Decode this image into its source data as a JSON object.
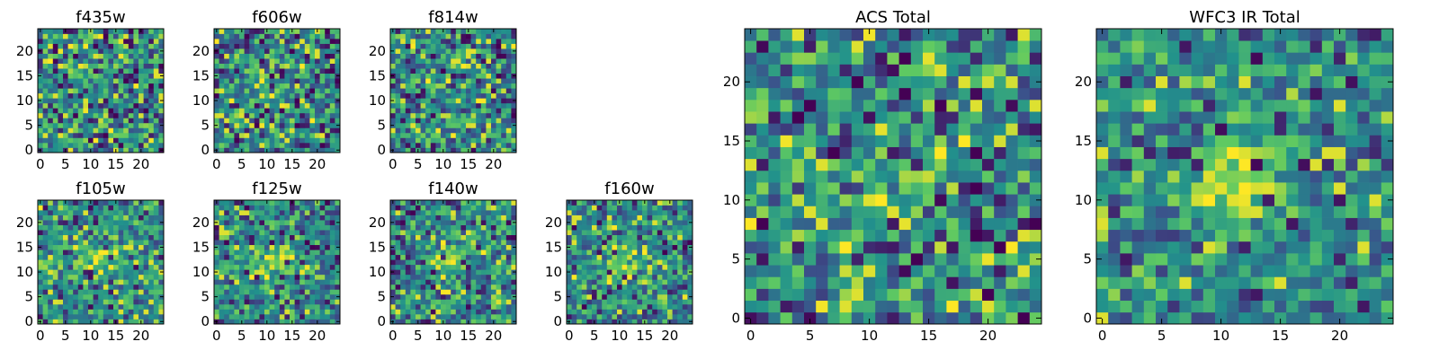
{
  "figure": {
    "colormap": "viridis",
    "colormap_stops": [
      "#440154",
      "#3b528b",
      "#21918c",
      "#5ec962",
      "#fde725"
    ],
    "background": "#ffffff"
  },
  "chart_data": [
    {
      "type": "heatmap",
      "title": "f435w",
      "grid": false,
      "xlim": [
        0,
        25
      ],
      "ylim": [
        0,
        25
      ],
      "xticks": [
        0,
        5,
        10,
        15,
        20
      ],
      "yticks": [
        0,
        5,
        10,
        15,
        20
      ],
      "noise": 0.2,
      "blob": 0.0,
      "blob_center": [
        12,
        11
      ],
      "blob_sigma": 4,
      "seed": 11
    },
    {
      "type": "heatmap",
      "title": "f606w",
      "grid": false,
      "xlim": [
        0,
        25
      ],
      "ylim": [
        0,
        25
      ],
      "xticks": [
        0,
        5,
        10,
        15,
        20
      ],
      "yticks": [
        0,
        5,
        10,
        15,
        20
      ],
      "noise": 0.2,
      "blob": 0.0,
      "blob_center": [
        12,
        11
      ],
      "blob_sigma": 4,
      "seed": 23
    },
    {
      "type": "heatmap",
      "title": "f814w",
      "grid": false,
      "xlim": [
        0,
        25
      ],
      "ylim": [
        0,
        25
      ],
      "xticks": [
        0,
        5,
        10,
        15,
        20
      ],
      "yticks": [
        0,
        5,
        10,
        15,
        20
      ],
      "noise": 0.2,
      "blob": 0.05,
      "blob_center": [
        12,
        11
      ],
      "blob_sigma": 4,
      "seed": 37
    },
    {
      "type": "heatmap",
      "title": "f105w",
      "grid": false,
      "xlim": [
        0,
        25
      ],
      "ylim": [
        0,
        25
      ],
      "xticks": [
        0,
        5,
        10,
        15,
        20
      ],
      "yticks": [
        0,
        5,
        10,
        15,
        20
      ],
      "noise": 0.16,
      "blob": 0.35,
      "blob_center": [
        11,
        12
      ],
      "blob_sigma": 3,
      "seed": 41
    },
    {
      "type": "heatmap",
      "title": "f125w",
      "grid": false,
      "xlim": [
        0,
        25
      ],
      "ylim": [
        0,
        25
      ],
      "xticks": [
        0,
        5,
        10,
        15,
        20
      ],
      "yticks": [
        0,
        5,
        10,
        15,
        20
      ],
      "noise": 0.17,
      "blob": 0.3,
      "blob_center": [
        11,
        12
      ],
      "blob_sigma": 3,
      "seed": 53
    },
    {
      "type": "heatmap",
      "title": "f140w",
      "grid": false,
      "xlim": [
        0,
        25
      ],
      "ylim": [
        0,
        25
      ],
      "xticks": [
        0,
        5,
        10,
        15,
        20
      ],
      "yticks": [
        0,
        5,
        10,
        15,
        20
      ],
      "noise": 0.17,
      "blob": 0.28,
      "blob_center": [
        11,
        12
      ],
      "blob_sigma": 3,
      "seed": 67
    },
    {
      "type": "heatmap",
      "title": "f160w",
      "grid": false,
      "xlim": [
        0,
        25
      ],
      "ylim": [
        0,
        25
      ],
      "xticks": [
        0,
        5,
        10,
        15,
        20
      ],
      "yticks": [
        0,
        5,
        10,
        15,
        20
      ],
      "noise": 0.17,
      "blob": 0.28,
      "blob_center": [
        11,
        12
      ],
      "blob_sigma": 3,
      "seed": 79
    },
    {
      "type": "heatmap",
      "title": "ACS Total",
      "grid": false,
      "xlim": [
        0,
        25
      ],
      "ylim": [
        0,
        25
      ],
      "xticks": [
        0,
        5,
        10,
        15,
        20
      ],
      "yticks": [
        0,
        5,
        10,
        15,
        20
      ],
      "noise": 0.2,
      "blob": 0.0,
      "blob_center": [
        12,
        11
      ],
      "blob_sigma": 4,
      "seed": 97
    },
    {
      "type": "heatmap",
      "title": "WFC3 IR Total",
      "grid": false,
      "xlim": [
        0,
        25
      ],
      "ylim": [
        0,
        25
      ],
      "xticks": [
        0,
        5,
        10,
        15,
        20
      ],
      "yticks": [
        0,
        5,
        10,
        15,
        20
      ],
      "noise": 0.14,
      "blob": 0.42,
      "blob_center": [
        11,
        12
      ],
      "blob_sigma": 3,
      "seed": 109
    }
  ]
}
